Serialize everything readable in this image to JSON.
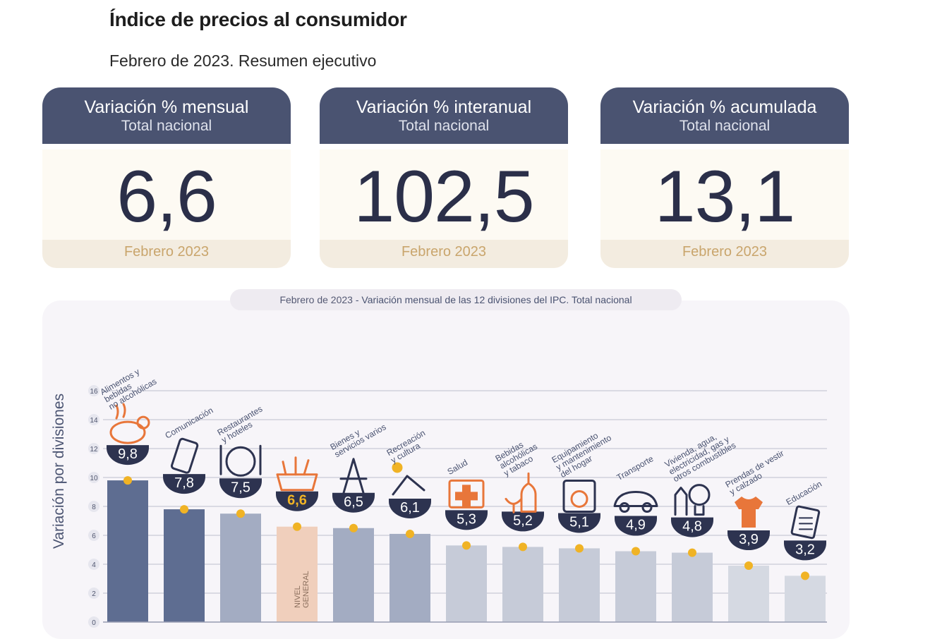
{
  "header": {
    "title": "Índice de precios al consumidor",
    "subtitle": "Febrero de 2023. Resumen ejecutivo"
  },
  "cards": [
    {
      "title": "Variación % mensual",
      "scope": "Total nacional",
      "value": "6,6",
      "period": "Febrero 2023"
    },
    {
      "title": "Variación % interanual",
      "scope": "Total nacional",
      "value": "102,5",
      "period": "Febrero 2023"
    },
    {
      "title": "Variación % acumulada",
      "scope": "Total nacional",
      "value": "13,1",
      "period": "Febrero 2023"
    }
  ],
  "chart_caption": {
    "date": "Febrero de 2023",
    "text": " - Variación mensual de las 12 divisiones del IPC. Total nacional"
  },
  "chart_data": {
    "type": "bar",
    "ylabel": "Variación por divisiones",
    "ylim": [
      0,
      16
    ],
    "yticks": [
      0,
      2,
      4,
      6,
      8,
      10,
      12,
      14,
      16
    ],
    "grid": true,
    "categories": [
      "Alimentos y bebidas no alcohólicas",
      "Comunicación",
      "Restaurantes y hoteles",
      "NIVEL GENERAL",
      "Bienes y servicios varios",
      "Recreación y cultura",
      "Salud",
      "Bebidas alcohólicas y tabaco",
      "Equipamiento y mantenimiento del hogar",
      "Transporte",
      "Vivienda, agua, electricidad, gas y otros combustibles",
      "Prendas de vestir y calzado",
      "Educación"
    ],
    "category_labels": [
      [
        "Alimentos y",
        "bebidas",
        "no alcohólicas"
      ],
      [
        "Comunicación"
      ],
      [
        "Restaurantes",
        "y hoteles"
      ],
      [],
      [
        "Bienes y",
        "servicios varios"
      ],
      [
        "Recreación",
        "y cultura"
      ],
      [
        "Salud"
      ],
      [
        "Bebidas",
        "alcohólicas",
        "y tabaco"
      ],
      [
        "Equipamiento",
        "y mantenimiento",
        "del hogar"
      ],
      [
        "Transporte"
      ],
      [
        "Vivienda, agua,",
        "electricidad, gas y",
        "otros combustibles"
      ],
      [
        "Prendas de vestir",
        "y calzado"
      ],
      [
        "Educación"
      ]
    ],
    "inbar_label": [
      "NIVEL",
      "GENERAL"
    ],
    "values": [
      9.8,
      7.8,
      7.5,
      6.6,
      6.5,
      6.1,
      5.3,
      5.2,
      5.1,
      4.9,
      4.8,
      3.9,
      3.2
    ],
    "value_labels": [
      "9,8",
      "7,8",
      "7,5",
      "6,6",
      "6,5",
      "6,1",
      "5,3",
      "5,2",
      "5,1",
      "4,9",
      "4,8",
      "3,9",
      "3,2"
    ],
    "icons": [
      "food-icon",
      "phone-icon",
      "cutlery-icon",
      "shopping-basket-icon",
      "services-icon",
      "recreation-icon",
      "health-icon",
      "bottle-icon",
      "washing-machine-icon",
      "car-icon",
      "house-bulb-icon",
      "clothing-icon",
      "book-icon"
    ],
    "colors": {
      "bar_dark": "#5e6d91",
      "bar_mid": "#a3acc2",
      "bar_light": "#c6cbd8",
      "bar_lighter": "#d5d9e2",
      "bar_general": "#f0cfbc",
      "value_badge": "#2d3350",
      "dot": "#f0b325",
      "icon": "#e8763a",
      "grid": "#c9cbd6"
    },
    "bar_color_keys": [
      "bar_dark",
      "bar_dark",
      "bar_mid",
      "bar_general",
      "bar_mid",
      "bar_mid",
      "bar_light",
      "bar_light",
      "bar_light",
      "bar_light",
      "bar_light",
      "bar_lighter",
      "bar_lighter"
    ]
  }
}
